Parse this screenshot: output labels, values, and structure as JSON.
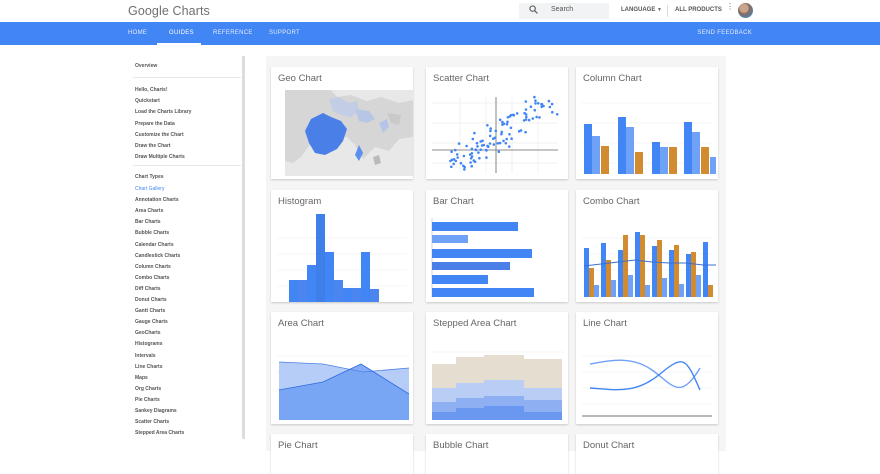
{
  "header": {
    "logo": "Google Charts",
    "search_placeholder": "Search",
    "language": "LANGUAGE",
    "all_products": "ALL PRODUCTS"
  },
  "nav": {
    "items": [
      "HOME",
      "GUIDES",
      "REFERENCE",
      "SUPPORT"
    ],
    "active": "GUIDES",
    "feedback": "SEND FEEDBACK"
  },
  "sidebar": {
    "overview": "Overview",
    "group1": [
      "Hello, Charts!",
      "Quickstart",
      "Load the Charts Library",
      "Prepare the Data",
      "Customize the Chart",
      "Draw the Chart",
      "Draw Multiple Charts"
    ],
    "chart_types_heading": "Chart Types",
    "group2": [
      "Chart Gallery",
      "Annotation Charts",
      "Area Charts",
      "Bar Charts",
      "Bubble Charts",
      "Calendar Charts",
      "Candlestick Charts",
      "Column Charts",
      "Combo Charts",
      "Diff Charts",
      "Donut Charts",
      "Gantt Charts",
      "Gauge Charts",
      "GeoCharts",
      "Histograms",
      "Intervals",
      "Line Charts",
      "Maps",
      "Org Charts",
      "Pie Charts",
      "Sankey Diagrams",
      "Scatter Charts",
      "Stepped Area Charts"
    ],
    "active": "Chart Gallery"
  },
  "gallery": {
    "cards": [
      {
        "title": "Geo Chart",
        "thumb": "geo"
      },
      {
        "title": "Scatter Chart",
        "thumb": "scatter"
      },
      {
        "title": "Column Chart",
        "thumb": "column"
      },
      {
        "title": "Histogram",
        "thumb": "histogram"
      },
      {
        "title": "Bar Chart",
        "thumb": "bar"
      },
      {
        "title": "Combo Chart",
        "thumb": "combo"
      },
      {
        "title": "Area Chart",
        "thumb": "area"
      },
      {
        "title": "Stepped Area Chart",
        "thumb": "stepped"
      },
      {
        "title": "Line Chart",
        "thumb": "line"
      },
      {
        "title": "Pie Chart",
        "thumb": "pie"
      },
      {
        "title": "Bubble Chart",
        "thumb": "bubble"
      },
      {
        "title": "Donut Chart",
        "thumb": "donut"
      }
    ]
  },
  "colors": {
    "brand_blue": "#4285f4",
    "accent_orange": "#d28b2e",
    "stepped_tan": "#e5ddcf"
  },
  "icons": {
    "search": "search-icon",
    "caret": "caret-down-icon",
    "more": "more-vert-icon"
  }
}
